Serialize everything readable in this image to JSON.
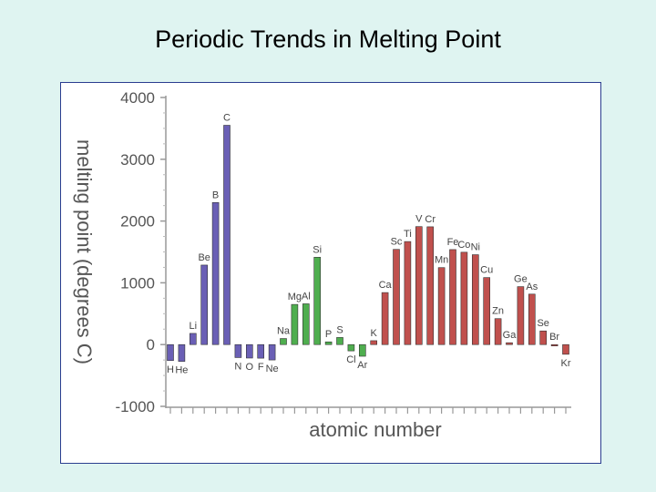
{
  "slide": {
    "title": "Periodic Trends in Melting Point"
  },
  "chart_data": {
    "type": "bar",
    "xlabel": "atomic number",
    "ylabel": "melting point (degrees C)",
    "ylim": [
      -1000,
      4000
    ],
    "yticks": [
      -1000,
      0,
      1000,
      2000,
      3000,
      4000
    ],
    "grid": false,
    "categories": [
      "H",
      "He",
      "Li",
      "Be",
      "B",
      "C",
      "N",
      "O",
      "F",
      "Ne",
      "Na",
      "Mg",
      "Al",
      "Si",
      "P",
      "S",
      "Cl",
      "Ar",
      "K",
      "Ca",
      "Sc",
      "Ti",
      "V",
      "Cr",
      "Mn",
      "Fe",
      "Co",
      "Ni",
      "Cu",
      "Zn",
      "Ga",
      "Ge",
      "As",
      "Se",
      "Br",
      "Kr"
    ],
    "series": [
      {
        "color": "#6a5fb5",
        "values": [
          -259,
          -272,
          181,
          1287,
          2300,
          3550,
          -210,
          -218,
          -220,
          -249,
          null,
          null,
          null,
          null,
          null,
          null,
          null,
          null,
          null,
          null,
          null,
          null,
          null,
          null,
          null,
          null,
          null,
          null,
          null,
          null,
          null,
          null,
          null,
          null,
          null,
          null
        ]
      },
      {
        "color": "#4fae4f",
        "values": [
          null,
          null,
          null,
          null,
          null,
          null,
          null,
          null,
          null,
          null,
          98,
          650,
          660,
          1414,
          44,
          115,
          -102,
          -189,
          null,
          null,
          null,
          null,
          null,
          null,
          null,
          null,
          null,
          null,
          null,
          null,
          null,
          null,
          null,
          null,
          null,
          null
        ]
      },
      {
        "color": "#c0504d",
        "values": [
          null,
          null,
          null,
          null,
          null,
          null,
          null,
          null,
          null,
          null,
          null,
          null,
          null,
          null,
          null,
          null,
          null,
          null,
          63,
          842,
          1541,
          1668,
          1910,
          1907,
          1246,
          1538,
          1495,
          1455,
          1085,
          420,
          30,
          938,
          817,
          221,
          -7,
          -157
        ]
      }
    ],
    "label_layout": {
      "H": "below",
      "He": "below",
      "N": "below",
      "O": "below",
      "F": "below",
      "Ne": "below",
      "Cl": "below",
      "Ar": "below",
      "Kr": "below"
    }
  }
}
